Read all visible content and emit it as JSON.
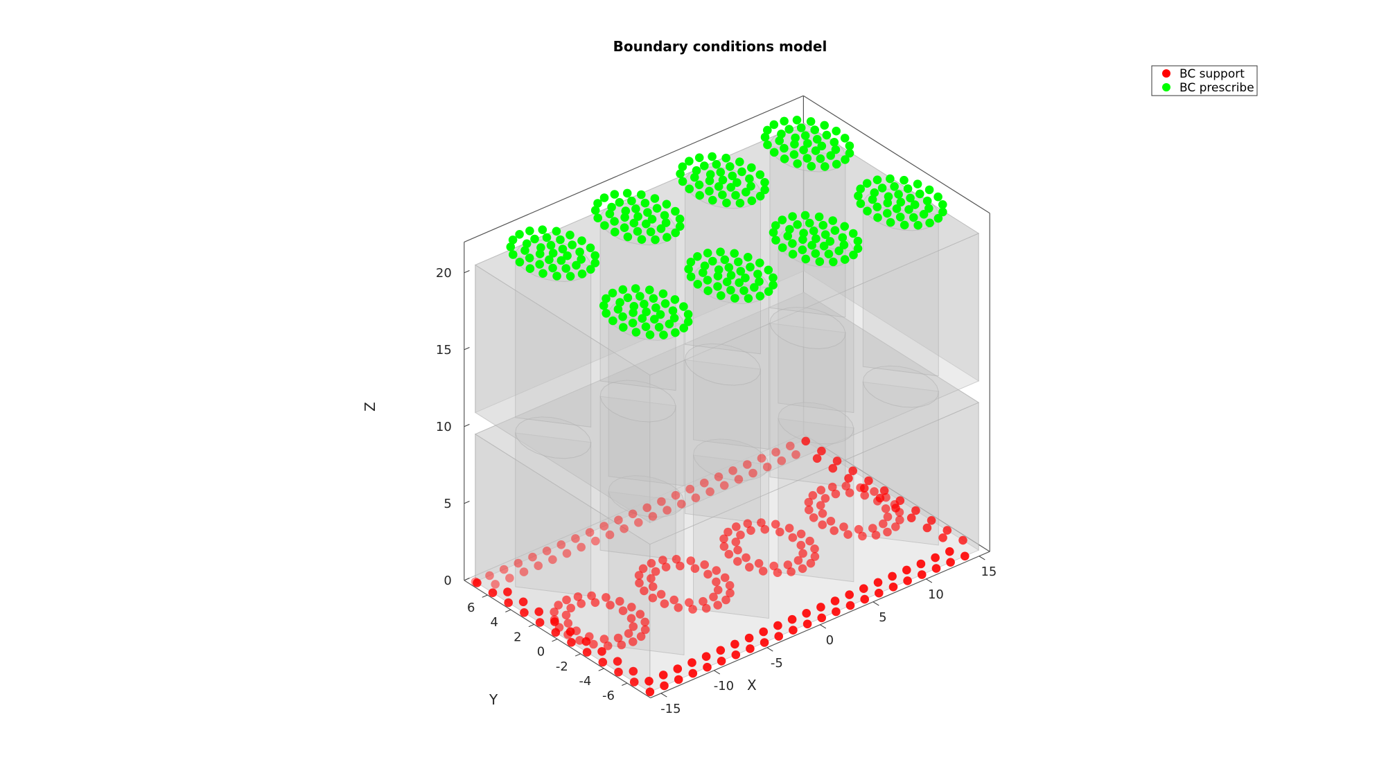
{
  "chart_data": {
    "type": "scatter",
    "title": "Boundary conditions model",
    "xlabel": "X",
    "ylabel": "Y",
    "zlabel": "Z",
    "xlim": [
      -16,
      16
    ],
    "ylim": [
      -8,
      8
    ],
    "zlim": [
      0,
      22
    ],
    "xticks": [
      "-15",
      "-10",
      "-5",
      "0",
      "5",
      "10",
      "15"
    ],
    "yticks": [
      "-6",
      "-4",
      "-2",
      "0",
      "2",
      "4",
      "6"
    ],
    "zticks": [
      "0",
      "5",
      "10",
      "15",
      "20"
    ],
    "legend_position": "top-right",
    "colors": {
      "support": "#ff0000",
      "prescribe": "#00ff00",
      "body": "#c8c8c8"
    },
    "series": [
      {
        "name": "BC support",
        "color": "#ff0000",
        "z": 0,
        "description_points": "bottom perimeter and ring bottoms of 8 studs/tubes at z=0"
      },
      {
        "name": "BC prescribe",
        "color": "#00ff00",
        "z": 22,
        "description_points": "top caps of 8 studs at z≈22"
      }
    ],
    "stud_centers_xy": [
      [
        -12,
        -4
      ],
      [
        -4,
        -4
      ],
      [
        4,
        -4
      ],
      [
        12,
        -4
      ],
      [
        -12,
        4
      ],
      [
        -4,
        4
      ],
      [
        4,
        4
      ],
      [
        12,
        4
      ]
    ]
  }
}
